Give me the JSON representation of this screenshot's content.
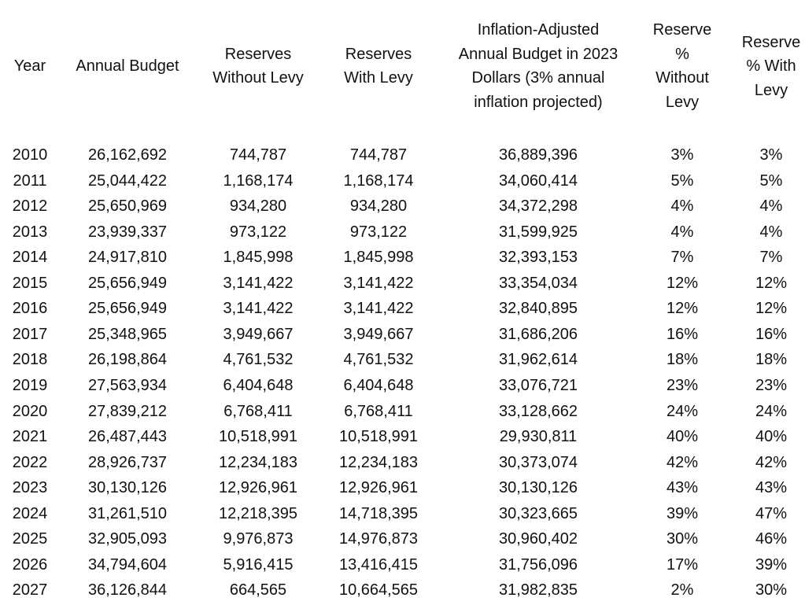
{
  "header": {
    "columns": [
      {
        "lines": [
          "Year"
        ]
      },
      {
        "lines": [
          "Annual Budget"
        ]
      },
      {
        "lines": [
          "Reserves",
          "Without Levy"
        ]
      },
      {
        "lines": [
          "Reserves",
          "With Levy"
        ]
      },
      {
        "lines": [
          "Inflation-Adjusted",
          "Annual Budget in 2023",
          "Dollars (3% annual",
          "inflation projected)"
        ]
      },
      {
        "lines": [
          "Reserve",
          "%",
          "Without",
          "Levy"
        ]
      },
      {
        "lines": [
          "Reserve",
          "% With",
          "Levy"
        ]
      }
    ]
  },
  "table": {
    "rows": [
      [
        "2010",
        "26,162,692",
        "744,787",
        "744,787",
        "36,889,396",
        "3%",
        "3%"
      ],
      [
        "2011",
        "25,044,422",
        "1,168,174",
        "1,168,174",
        "34,060,414",
        "5%",
        "5%"
      ],
      [
        "2012",
        "25,650,969",
        "934,280",
        "934,280",
        "34,372,298",
        "4%",
        "4%"
      ],
      [
        "2013",
        "23,939,337",
        "973,122",
        "973,122",
        "31,599,925",
        "4%",
        "4%"
      ],
      [
        "2014",
        "24,917,810",
        "1,845,998",
        "1,845,998",
        "32,393,153",
        "7%",
        "7%"
      ],
      [
        "2015",
        "25,656,949",
        "3,141,422",
        "3,141,422",
        "33,354,034",
        "12%",
        "12%"
      ],
      [
        "2016",
        "25,656,949",
        "3,141,422",
        "3,141,422",
        "32,840,895",
        "12%",
        "12%"
      ],
      [
        "2017",
        "25,348,965",
        "3,949,667",
        "3,949,667",
        "31,686,206",
        "16%",
        "16%"
      ],
      [
        "2018",
        "26,198,864",
        "4,761,532",
        "4,761,532",
        "31,962,614",
        "18%",
        "18%"
      ],
      [
        "2019",
        "27,563,934",
        "6,404,648",
        "6,404,648",
        "33,076,721",
        "23%",
        "23%"
      ],
      [
        "2020",
        "27,839,212",
        "6,768,411",
        "6,768,411",
        "33,128,662",
        "24%",
        "24%"
      ],
      [
        "2021",
        "26,487,443",
        "10,518,991",
        "10,518,991",
        "29,930,811",
        "40%",
        "40%"
      ],
      [
        "2022",
        "28,926,737",
        "12,234,183",
        "12,234,183",
        "30,373,074",
        "42%",
        "42%"
      ],
      [
        "2023",
        "30,130,126",
        "12,926,961",
        "12,926,961",
        "30,130,126",
        "43%",
        "43%"
      ],
      [
        "2024",
        "31,261,510",
        "12,218,395",
        "14,718,395",
        "30,323,665",
        "39%",
        "47%"
      ],
      [
        "2025",
        "32,905,093",
        "9,976,873",
        "14,976,873",
        "30,960,402",
        "30%",
        "46%"
      ],
      [
        "2026",
        "34,794,604",
        "5,916,415",
        "13,416,415",
        "31,756,096",
        "17%",
        "39%"
      ],
      [
        "2027",
        "36,126,844",
        "664,565",
        "10,664,565",
        "31,982,835",
        "2%",
        "30%"
      ]
    ]
  }
}
